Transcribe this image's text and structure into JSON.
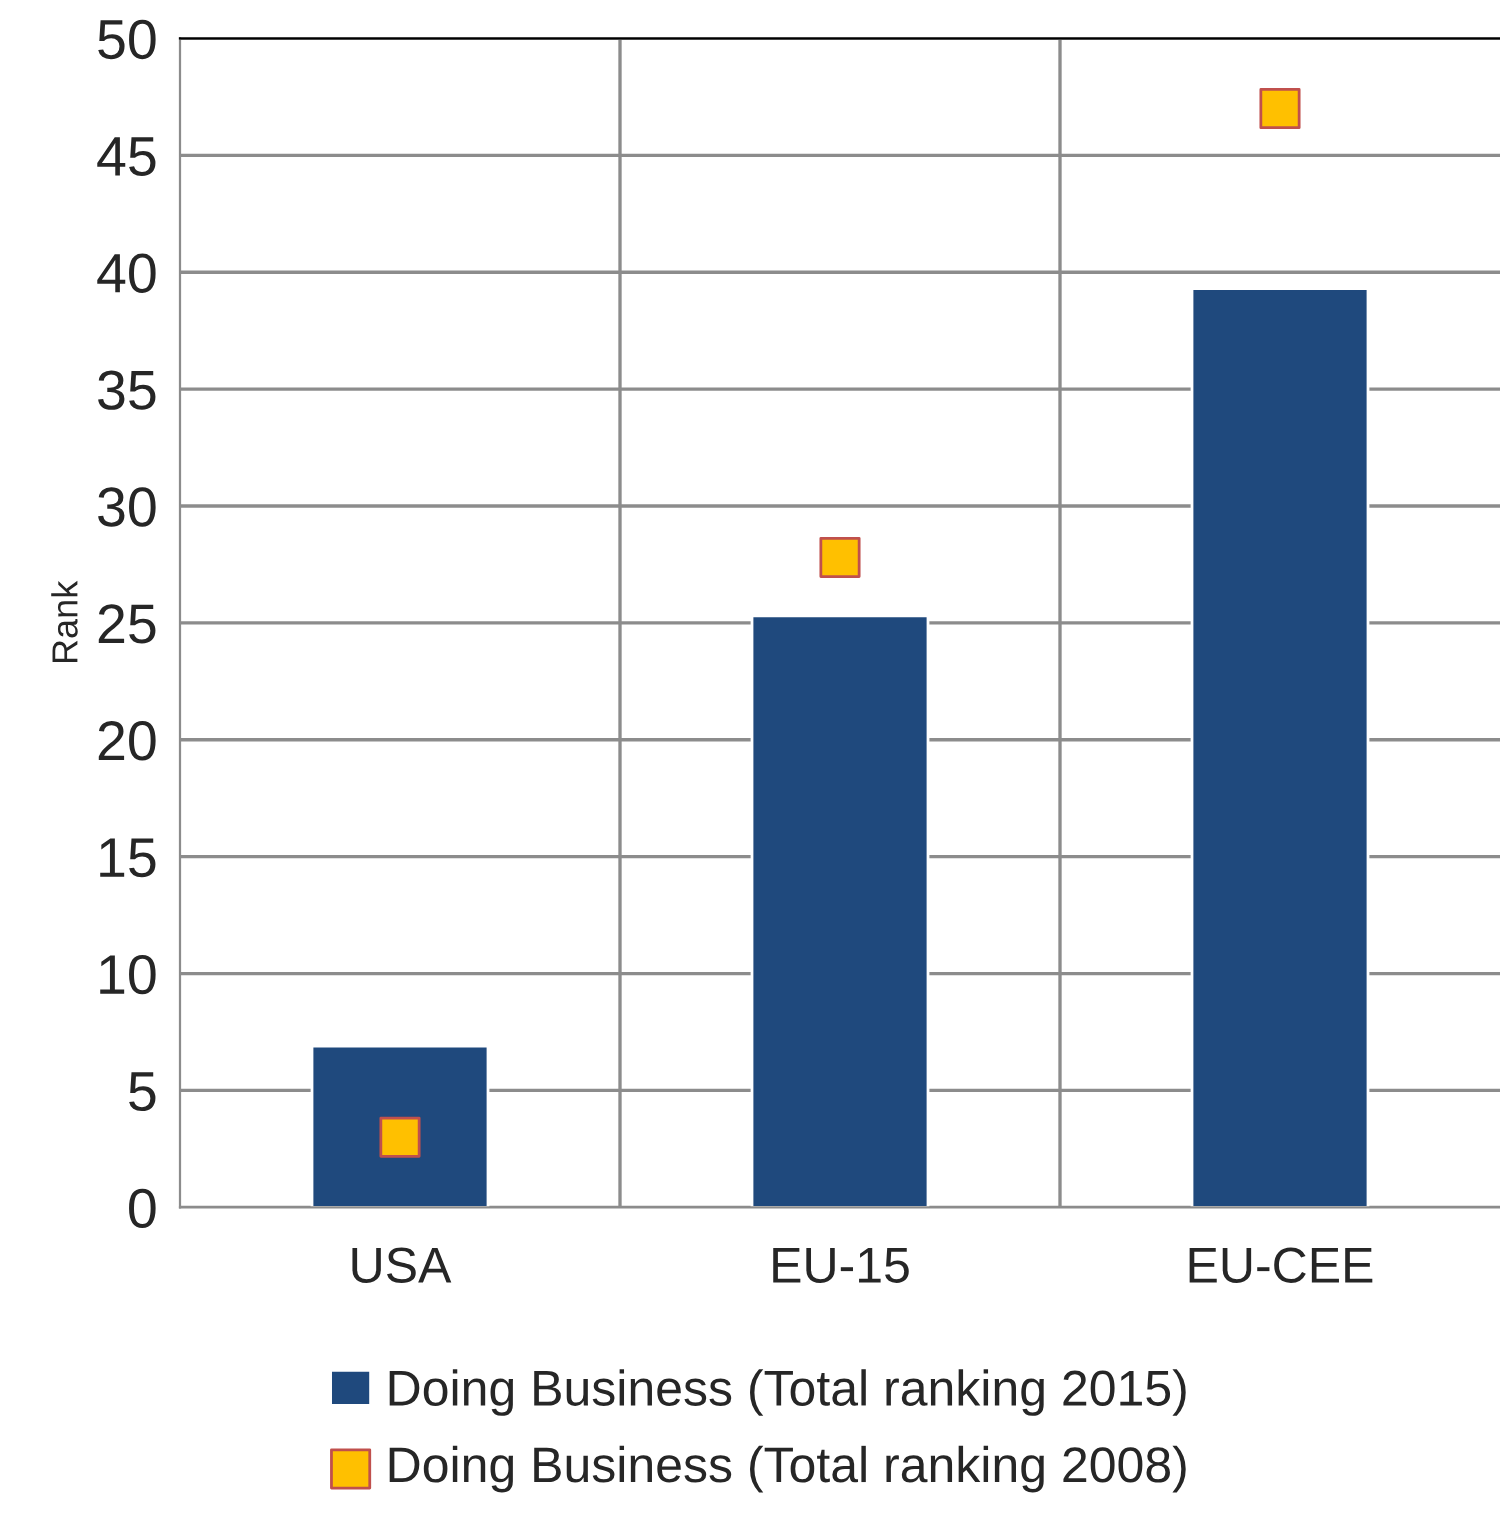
{
  "chart_data": {
    "type": "bar",
    "ylabel": "Rank",
    "categories": [
      "USA",
      "EU-15",
      "EU-CEE"
    ],
    "series": [
      {
        "name": "Doing Business (Total ranking 2015)",
        "color": "#1f497d",
        "values": [
          6.9,
          25.3,
          39.3
        ]
      },
      {
        "name": "Doing Business (Total ranking 2008)",
        "type": "scatter",
        "color": "#ffc000",
        "marker": "square",
        "values": [
          3.0,
          27.8,
          47.0
        ]
      }
    ],
    "ylim": [
      0,
      50
    ],
    "yticks": [
      0,
      5,
      10,
      15,
      20,
      25,
      30,
      35,
      40,
      45,
      50
    ],
    "grid": true,
    "legend": "bottom"
  }
}
